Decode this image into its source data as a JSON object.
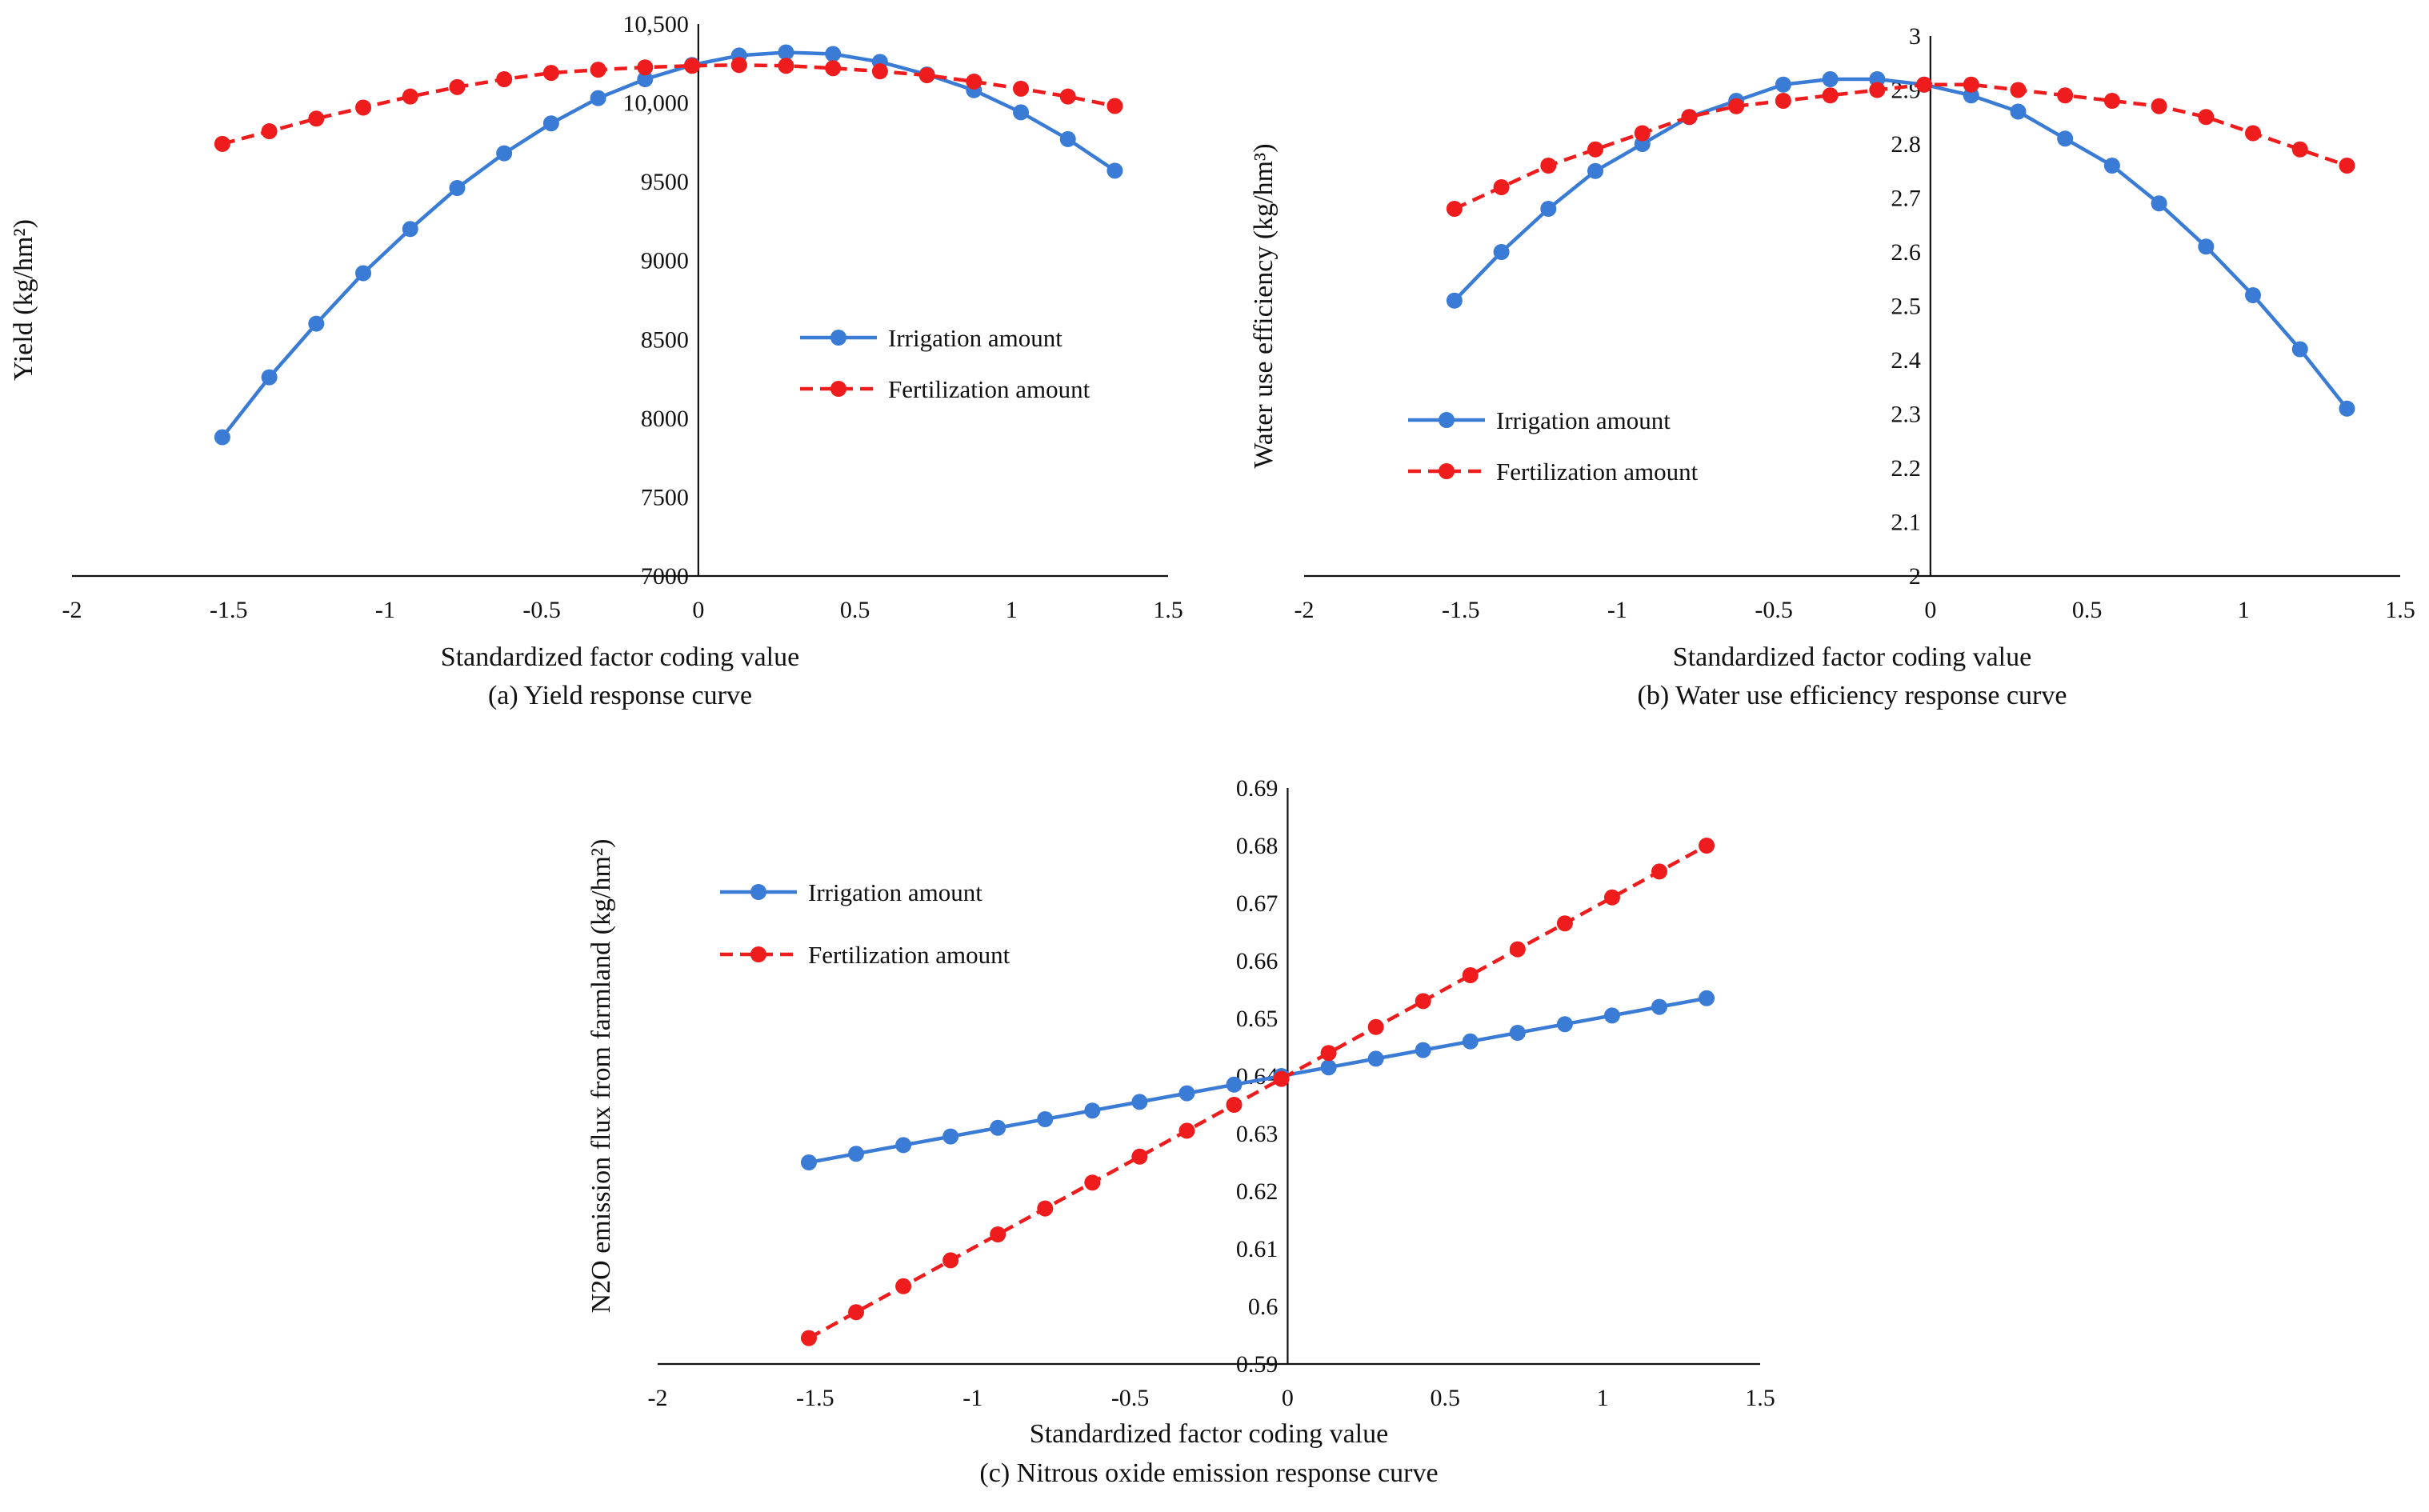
{
  "chart_data": [
    {
      "id": "a",
      "type": "line",
      "ylabel": "Yield (kg/hm²)",
      "xlabel": "Standardized factor coding value",
      "caption": "(a) Yield response curve",
      "xlim": [
        -2,
        1.5
      ],
      "ylim": [
        7000,
        10500
      ],
      "xticks": [
        -2,
        -1.5,
        -1,
        -0.5,
        0,
        0.5,
        1,
        1.5
      ],
      "xtick_labels": [
        "-2",
        "-1.5",
        "-1",
        "-0.5",
        "0",
        "0.5",
        "1",
        "1.5"
      ],
      "yticks": [
        7000,
        7500,
        8000,
        8500,
        9000,
        9500,
        10000,
        10500
      ],
      "ytick_labels": [
        "7000",
        "7500",
        "8000",
        "8500",
        "9000",
        "9500",
        "10,000",
        "10,500"
      ],
      "legend_position": "center-right",
      "x": [
        -1.52,
        -1.37,
        -1.22,
        -1.07,
        -0.92,
        -0.77,
        -0.62,
        -0.47,
        -0.32,
        -0.17,
        -0.02,
        0.13,
        0.28,
        0.43,
        0.58,
        0.73,
        0.88,
        1.03,
        1.18,
        1.33
      ],
      "series": [
        {
          "name": "Irrigation amount",
          "color": "#3a7bd5",
          "dashed": false,
          "values": [
            7880,
            8260,
            8600,
            8920,
            9200,
            9460,
            9680,
            9870,
            10030,
            10150,
            10240,
            10300,
            10320,
            10310,
            10260,
            10180,
            10080,
            9940,
            9770,
            9570
          ]
        },
        {
          "name": "Fertilization amount",
          "color": "#ee1c1c",
          "dashed": true,
          "values": [
            9740,
            9820,
            9900,
            9970,
            10040,
            10100,
            10150,
            10190,
            10210,
            10225,
            10235,
            10240,
            10235,
            10220,
            10200,
            10175,
            10135,
            10090,
            10040,
            9980
          ]
        }
      ]
    },
    {
      "id": "b",
      "type": "line",
      "ylabel": "Water use efficiency (kg/hm³)",
      "xlabel": "Standardized factor coding value",
      "caption": "(b) Water use efficiency response curve",
      "xlim": [
        -2,
        1.5
      ],
      "ylim": [
        2,
        3
      ],
      "xticks": [
        -2,
        -1.5,
        -1,
        -0.5,
        0,
        0.5,
        1,
        1.5
      ],
      "xtick_labels": [
        "-2",
        "-1.5",
        "-1",
        "-0.5",
        "0",
        "0.5",
        "1",
        "1.5"
      ],
      "yticks": [
        2,
        2.1,
        2.2,
        2.3,
        2.4,
        2.5,
        2.6,
        2.7,
        2.8,
        2.9,
        3
      ],
      "ytick_labels": [
        "2",
        "2.1",
        "2.2",
        "2.3",
        "2.4",
        "2.5",
        "2.6",
        "2.7",
        "2.8",
        "2.9",
        "3"
      ],
      "legend_position": "lower-left",
      "x": [
        -1.52,
        -1.37,
        -1.22,
        -1.07,
        -0.92,
        -0.77,
        -0.62,
        -0.47,
        -0.32,
        -0.17,
        -0.02,
        0.13,
        0.28,
        0.43,
        0.58,
        0.73,
        0.88,
        1.03,
        1.18,
        1.33
      ],
      "series": [
        {
          "name": "Irrigation amount",
          "color": "#3a7bd5",
          "dashed": false,
          "values": [
            2.51,
            2.6,
            2.68,
            2.75,
            2.8,
            2.85,
            2.88,
            2.91,
            2.92,
            2.92,
            2.91,
            2.89,
            2.86,
            2.81,
            2.76,
            2.69,
            2.61,
            2.52,
            2.42,
            2.31
          ]
        },
        {
          "name": "Fertilization amount",
          "color": "#ee1c1c",
          "dashed": true,
          "values": [
            2.68,
            2.72,
            2.76,
            2.79,
            2.82,
            2.85,
            2.87,
            2.88,
            2.89,
            2.9,
            2.91,
            2.91,
            2.9,
            2.89,
            2.88,
            2.87,
            2.85,
            2.82,
            2.79,
            2.76
          ]
        }
      ]
    },
    {
      "id": "c",
      "type": "line",
      "ylabel": "N2O emission flux from farmland (kg/hm²)",
      "xlabel": "Standardized factor coding value",
      "caption": "(c) Nitrous oxide emission response curve",
      "xlim": [
        -2,
        1.5
      ],
      "ylim": [
        0.59,
        0.69
      ],
      "xticks": [
        -2,
        -1.5,
        -1,
        -0.5,
        0,
        0.5,
        1,
        1.5
      ],
      "xtick_labels": [
        "-2",
        "-1.5",
        "-1",
        "-0.5",
        "0",
        "0.5",
        "1",
        "1.5"
      ],
      "yticks": [
        0.59,
        0.6,
        0.61,
        0.62,
        0.63,
        0.64,
        0.65,
        0.66,
        0.67,
        0.68,
        0.69
      ],
      "ytick_labels": [
        "0.59",
        "0.6",
        "0.61",
        "0.62",
        "0.63",
        "0.64",
        "0.65",
        "0.66",
        "0.67",
        "0.68",
        "0.69"
      ],
      "legend_position": "upper-left",
      "x": [
        -1.52,
        -1.37,
        -1.22,
        -1.07,
        -0.92,
        -0.77,
        -0.62,
        -0.47,
        -0.32,
        -0.17,
        -0.02,
        0.13,
        0.28,
        0.43,
        0.58,
        0.73,
        0.88,
        1.03,
        1.18,
        1.33
      ],
      "series": [
        {
          "name": "Irrigation amount",
          "color": "#3a7bd5",
          "dashed": false,
          "values": [
            0.625,
            0.6265,
            0.628,
            0.6295,
            0.631,
            0.6325,
            0.634,
            0.6355,
            0.637,
            0.6385,
            0.64,
            0.6415,
            0.643,
            0.6445,
            0.646,
            0.6475,
            0.649,
            0.6505,
            0.652,
            0.6535
          ]
        },
        {
          "name": "Fertilization amount",
          "color": "#ee1c1c",
          "dashed": true,
          "values": [
            0.5945,
            0.599,
            0.6035,
            0.608,
            0.6125,
            0.617,
            0.6215,
            0.626,
            0.6305,
            0.635,
            0.6395,
            0.644,
            0.6485,
            0.653,
            0.6575,
            0.662,
            0.6665,
            0.671,
            0.6755,
            0.68
          ]
        }
      ]
    }
  ]
}
